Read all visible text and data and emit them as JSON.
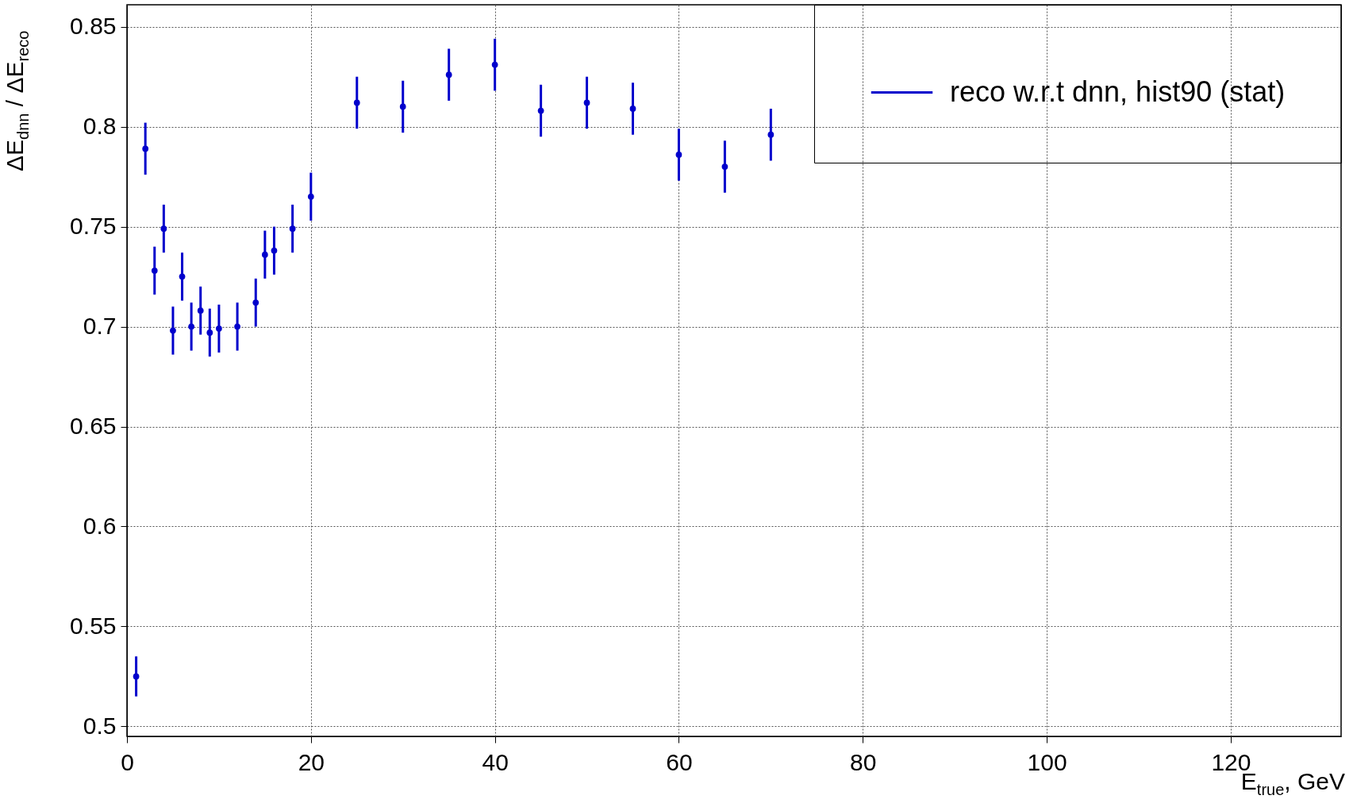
{
  "chart_data": {
    "type": "scatter",
    "xlabel": "E$_{true}$, GeV",
    "ylabel": "ΔE$_{dnn}$ / ΔE$_{reco}$",
    "x": [
      1,
      2,
      3,
      4,
      5,
      6,
      7,
      8,
      9,
      10,
      12,
      14,
      15,
      16,
      18,
      20,
      25,
      30,
      35,
      40,
      45,
      50,
      55,
      60,
      65,
      70
    ],
    "series": [
      {
        "name": "reco w.r.t dnn, hist90 (stat)",
        "color": "#0000cc",
        "values": [
          0.525,
          0.789,
          0.728,
          0.749,
          0.698,
          0.725,
          0.7,
          0.708,
          0.697,
          0.699,
          0.7,
          0.712,
          0.736,
          0.738,
          0.749,
          0.765,
          0.812,
          0.81,
          0.826,
          0.831,
          0.808,
          0.812,
          0.809,
          0.786,
          0.78,
          0.796
        ],
        "errors": [
          0.01,
          0.013,
          0.012,
          0.012,
          0.012,
          0.012,
          0.012,
          0.012,
          0.012,
          0.012,
          0.012,
          0.012,
          0.012,
          0.012,
          0.012,
          0.012,
          0.013,
          0.013,
          0.013,
          0.013,
          0.013,
          0.013,
          0.013,
          0.013,
          0.013,
          0.013
        ]
      }
    ],
    "xlim": [
      0,
      132
    ],
    "xticks": [
      0,
      20,
      40,
      60,
      80,
      100,
      120
    ],
    "ylim": [
      0.495,
      0.861
    ],
    "yticks": [
      0.5,
      0.55,
      0.6,
      0.65,
      0.7,
      0.75,
      0.8,
      0.85
    ],
    "grid": true,
    "legend": "top right",
    "marker": "circle"
  }
}
